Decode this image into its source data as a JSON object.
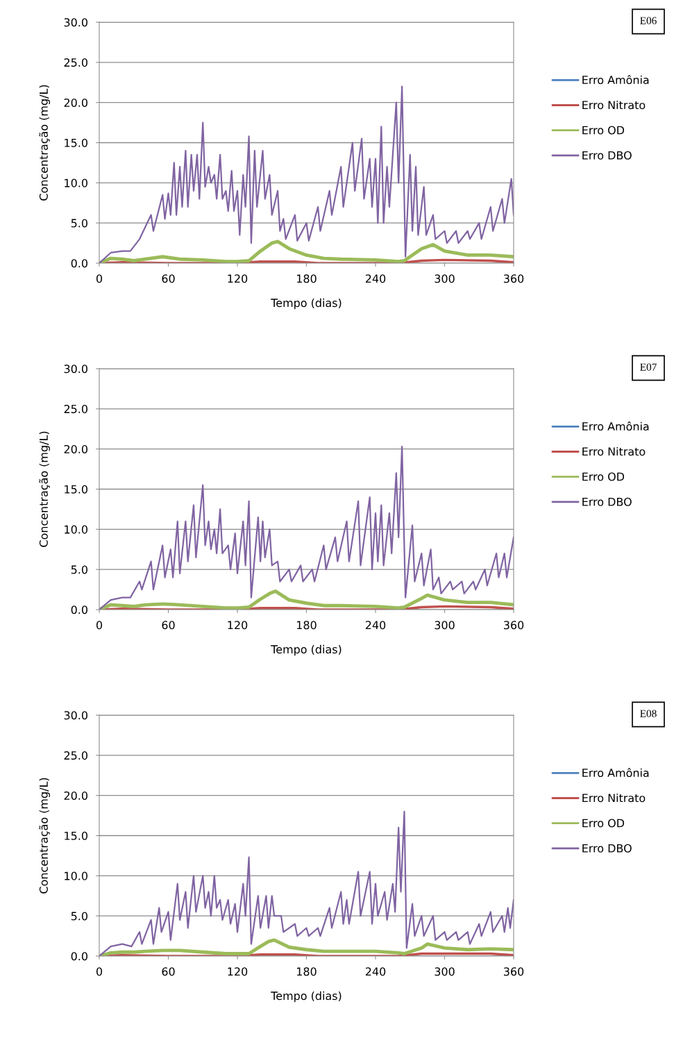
{
  "chart_data": [
    {
      "type": "line",
      "xlabel": "Tempo (dias)",
      "ylabel": "Concentração (mg/L)",
      "annotations": [
        "E06"
      ],
      "xlim": [
        0,
        360
      ],
      "xticks": [
        0,
        60,
        120,
        180,
        240,
        300,
        360
      ],
      "ylim": [
        0,
        30
      ],
      "yticks": [
        {
          "value": 0,
          "label": "0.0"
        },
        {
          "value": 5,
          "label": "5.0"
        },
        {
          "value": 10,
          "label": "10.0"
        },
        {
          "value": 15,
          "label": "15.0"
        },
        {
          "value": 20,
          "label": "20.0"
        },
        {
          "value": 25,
          "label": "25.0"
        },
        {
          "value": 30,
          "label": "30.0"
        }
      ],
      "grid": "y",
      "legend": "right",
      "series": [
        {
          "name": "Erro Amônia",
          "color": "#4f81bd",
          "values": [
            null
          ]
        },
        {
          "name": "Erro Nitrato",
          "color": "#c0504d",
          "x": [
            0,
            20,
            60,
            120,
            140,
            170,
            190,
            260,
            280,
            300,
            340,
            360
          ],
          "values": [
            0,
            0.1,
            0,
            0,
            0.2,
            0.2,
            0,
            0,
            0.3,
            0.4,
            0.3,
            0.1
          ]
        },
        {
          "name": "Erro OD",
          "color": "#9bbb59",
          "x": [
            0,
            10,
            20,
            30,
            40,
            55,
            70,
            90,
            110,
            120,
            130,
            140,
            150,
            155,
            165,
            180,
            195,
            210,
            240,
            260,
            265,
            280,
            290,
            300,
            320,
            340,
            360
          ],
          "values": [
            0,
            0.6,
            0.5,
            0.3,
            0.5,
            0.8,
            0.5,
            0.4,
            0.2,
            0.2,
            0.3,
            1.5,
            2.5,
            2.7,
            1.8,
            1.0,
            0.6,
            0.5,
            0.4,
            0.2,
            0.3,
            1.8,
            2.3,
            1.5,
            1.0,
            1.0,
            0.8
          ]
        },
        {
          "name": "Erro DBO",
          "color": "#8064a2",
          "x": [
            0,
            10,
            20,
            27,
            35,
            45,
            47,
            55,
            57,
            60,
            62,
            65,
            67,
            70,
            72,
            75,
            77,
            80,
            82,
            85,
            87,
            90,
            92,
            95,
            97,
            100,
            102,
            105,
            107,
            110,
            112,
            115,
            117,
            120,
            122,
            125,
            127,
            130,
            132,
            135,
            137,
            142,
            144,
            148,
            150,
            155,
            157,
            160,
            162,
            170,
            172,
            180,
            182,
            190,
            192,
            200,
            202,
            210,
            212,
            220,
            222,
            228,
            230,
            235,
            237,
            240,
            242,
            245,
            247,
            250,
            252,
            258,
            260,
            263,
            266,
            270,
            272,
            275,
            277,
            282,
            284,
            290,
            292,
            300,
            302,
            310,
            312,
            320,
            322,
            330,
            332,
            340,
            342,
            350,
            352,
            358,
            360
          ],
          "values": [
            0,
            1.3,
            1.5,
            1.5,
            3,
            6,
            4,
            8.5,
            5.5,
            8.7,
            6,
            12.5,
            6,
            12,
            7,
            14,
            7,
            13.5,
            9,
            13.5,
            8,
            17.5,
            9.5,
            12,
            10,
            11,
            8,
            13.5,
            8,
            9,
            6.5,
            11.5,
            6.5,
            9,
            3.5,
            11,
            7,
            15.8,
            2.5,
            14,
            7,
            14,
            8,
            11,
            6,
            9,
            4,
            5.5,
            3,
            6,
            2.8,
            5,
            2.8,
            7,
            4,
            9,
            6,
            12,
            7,
            15,
            9,
            15.5,
            8,
            13,
            7,
            13,
            5,
            17,
            5,
            12,
            7,
            20,
            10,
            22,
            0.8,
            13.5,
            4,
            12,
            3.5,
            9.5,
            3.5,
            6,
            3,
            4,
            2.5,
            4,
            2.5,
            4,
            3,
            5,
            3,
            7,
            4,
            8,
            5,
            10.5,
            6
          ]
        }
      ]
    },
    {
      "type": "line",
      "xlabel": "Tempo (dias)",
      "ylabel": "Concentração (mg/L)",
      "annotations": [
        "E07"
      ],
      "xlim": [
        0,
        360
      ],
      "xticks": [
        0,
        60,
        120,
        180,
        240,
        300,
        360
      ],
      "ylim": [
        0,
        30
      ],
      "yticks": [
        {
          "value": 0,
          "label": "0.0"
        },
        {
          "value": 5,
          "label": "5.0"
        },
        {
          "value": 10,
          "label": "10.0"
        },
        {
          "value": 15,
          "label": "15.0"
        },
        {
          "value": 20,
          "label": "20.0"
        },
        {
          "value": 25,
          "label": "25.0"
        },
        {
          "value": 30,
          "label": "30.0"
        }
      ],
      "grid": "y",
      "legend": "right",
      "series": [
        {
          "name": "Erro Amônia",
          "color": "#4f81bd",
          "values": [
            null
          ]
        },
        {
          "name": "Erro Nitrato",
          "color": "#c0504d",
          "x": [
            0,
            20,
            60,
            120,
            140,
            170,
            190,
            260,
            280,
            300,
            340,
            360
          ],
          "values": [
            0,
            0.1,
            0,
            0,
            0.2,
            0.2,
            0,
            0,
            0.3,
            0.4,
            0.3,
            0.1
          ]
        },
        {
          "name": "Erro OD",
          "color": "#9bbb59",
          "x": [
            0,
            10,
            20,
            30,
            40,
            55,
            70,
            90,
            110,
            120,
            130,
            140,
            148,
            153,
            165,
            180,
            195,
            210,
            240,
            260,
            265,
            280,
            285,
            300,
            320,
            340,
            360
          ],
          "values": [
            0,
            0.6,
            0.5,
            0.4,
            0.6,
            0.7,
            0.6,
            0.4,
            0.2,
            0.2,
            0.3,
            1.3,
            2.0,
            2.3,
            1.2,
            0.8,
            0.5,
            0.5,
            0.4,
            0.2,
            0.3,
            1.4,
            1.8,
            1.2,
            0.9,
            0.9,
            0.6
          ]
        },
        {
          "name": "Erro DBO",
          "color": "#8064a2",
          "x": [
            0,
            10,
            20,
            27,
            35,
            37,
            45,
            47,
            55,
            57,
            62,
            64,
            68,
            70,
            75,
            77,
            82,
            84,
            90,
            92,
            95,
            97,
            100,
            102,
            105,
            107,
            112,
            114,
            118,
            120,
            125,
            127,
            130,
            132,
            138,
            140,
            142,
            144,
            148,
            150,
            155,
            157,
            165,
            167,
            175,
            177,
            185,
            187,
            195,
            197,
            205,
            207,
            215,
            217,
            225,
            227,
            235,
            237,
            240,
            242,
            245,
            247,
            252,
            254,
            258,
            260,
            263,
            266,
            272,
            274,
            280,
            282,
            288,
            290,
            295,
            297,
            305,
            307,
            315,
            317,
            325,
            327,
            335,
            337,
            345,
            347,
            352,
            354,
            360
          ],
          "values": [
            0,
            1.2,
            1.5,
            1.5,
            3.5,
            2.5,
            6,
            2.5,
            8,
            4,
            7.5,
            4,
            11,
            4.5,
            11,
            6,
            13,
            6.5,
            15.5,
            8,
            11,
            7.5,
            10,
            7,
            12.5,
            7,
            8,
            5,
            9.5,
            4.5,
            11,
            5.5,
            13.5,
            1.5,
            11.5,
            6,
            11,
            6.5,
            10,
            5.5,
            6,
            3.5,
            5,
            3.5,
            5.5,
            3.5,
            5,
            3.5,
            8,
            5,
            9,
            6,
            11,
            6,
            13.5,
            5.5,
            14,
            5,
            12,
            6,
            13,
            5.5,
            12,
            7,
            17,
            9,
            20.3,
            1.5,
            10.5,
            3.5,
            7,
            3,
            7.5,
            2.5,
            4,
            2,
            3.5,
            2.5,
            3.5,
            2,
            3.5,
            2.5,
            5,
            3,
            7,
            4,
            7,
            4,
            9
          ]
        }
      ]
    },
    {
      "type": "line",
      "xlabel": "Tempo (dias)",
      "ylabel": "Concentração (mg/L)",
      "annotations": [
        "E08"
      ],
      "xlim": [
        0,
        360
      ],
      "xticks": [
        0,
        60,
        120,
        180,
        240,
        300,
        360
      ],
      "ylim": [
        0,
        30
      ],
      "yticks": [
        {
          "value": 0,
          "label": "0.0"
        },
        {
          "value": 5,
          "label": "5.0"
        },
        {
          "value": 10,
          "label": "10.0"
        },
        {
          "value": 15,
          "label": "15.0"
        },
        {
          "value": 20,
          "label": "20.0"
        },
        {
          "value": 25,
          "label": "25.0"
        },
        {
          "value": 30,
          "label": "30.0"
        }
      ],
      "grid": "y",
      "legend": "right",
      "series": [
        {
          "name": "Erro Amônia",
          "color": "#4f81bd",
          "values": [
            null
          ]
        },
        {
          "name": "Erro Nitrato",
          "color": "#c0504d",
          "x": [
            0,
            20,
            60,
            120,
            140,
            170,
            190,
            260,
            280,
            300,
            340,
            360
          ],
          "values": [
            0,
            0.1,
            0,
            0,
            0.2,
            0.2,
            0,
            0,
            0.3,
            0.3,
            0.3,
            0.1
          ]
        },
        {
          "name": "Erro OD",
          "color": "#9bbb59",
          "x": [
            0,
            10,
            20,
            30,
            40,
            55,
            70,
            90,
            110,
            120,
            130,
            140,
            147,
            152,
            165,
            180,
            195,
            210,
            240,
            260,
            265,
            280,
            285,
            300,
            320,
            340,
            360
          ],
          "values": [
            0,
            0.4,
            0.5,
            0.5,
            0.6,
            0.7,
            0.7,
            0.5,
            0.3,
            0.3,
            0.3,
            1.2,
            1.8,
            2.0,
            1.1,
            0.8,
            0.6,
            0.6,
            0.6,
            0.4,
            0.3,
            1.0,
            1.5,
            1.0,
            0.8,
            0.9,
            0.8
          ]
        },
        {
          "name": "Erro DBO",
          "color": "#8064a2",
          "x": [
            0,
            10,
            20,
            28,
            35,
            37,
            45,
            47,
            52,
            54,
            60,
            62,
            68,
            70,
            75,
            77,
            82,
            84,
            90,
            92,
            95,
            97,
            100,
            102,
            105,
            107,
            112,
            114,
            118,
            120,
            125,
            127,
            130,
            132,
            138,
            140,
            145,
            147,
            150,
            152,
            158,
            160,
            170,
            172,
            180,
            182,
            190,
            192,
            200,
            202,
            210,
            212,
            215,
            217,
            225,
            227,
            235,
            237,
            240,
            242,
            248,
            250,
            255,
            257,
            260,
            262,
            265,
            267,
            272,
            274,
            280,
            282,
            290,
            292,
            300,
            302,
            310,
            312,
            320,
            322,
            330,
            332,
            340,
            342,
            350,
            352,
            355,
            357,
            360
          ],
          "values": [
            0,
            1.2,
            1.5,
            1.2,
            3,
            1.5,
            4.5,
            1.5,
            6,
            3,
            5.5,
            2,
            9,
            4.5,
            8,
            3.5,
            10,
            5.5,
            10,
            6,
            8,
            5,
            10,
            6,
            7,
            4.5,
            7,
            4,
            6.5,
            3,
            9,
            5,
            12.3,
            1.5,
            7.5,
            3.5,
            7.5,
            3.5,
            7.5,
            5,
            5,
            3,
            4,
            2.5,
            3.5,
            2.5,
            3.5,
            2.5,
            6,
            3.5,
            8,
            4,
            7,
            4,
            10.5,
            5,
            10.5,
            4,
            9,
            5,
            8,
            4.5,
            9,
            5.5,
            16,
            8,
            18,
            1,
            6.5,
            2.5,
            5,
            2.5,
            5,
            2,
            3,
            2,
            3,
            2,
            3,
            1.5,
            4,
            2.5,
            5.5,
            3,
            5,
            3,
            6,
            3.5,
            7
          ]
        }
      ]
    }
  ]
}
